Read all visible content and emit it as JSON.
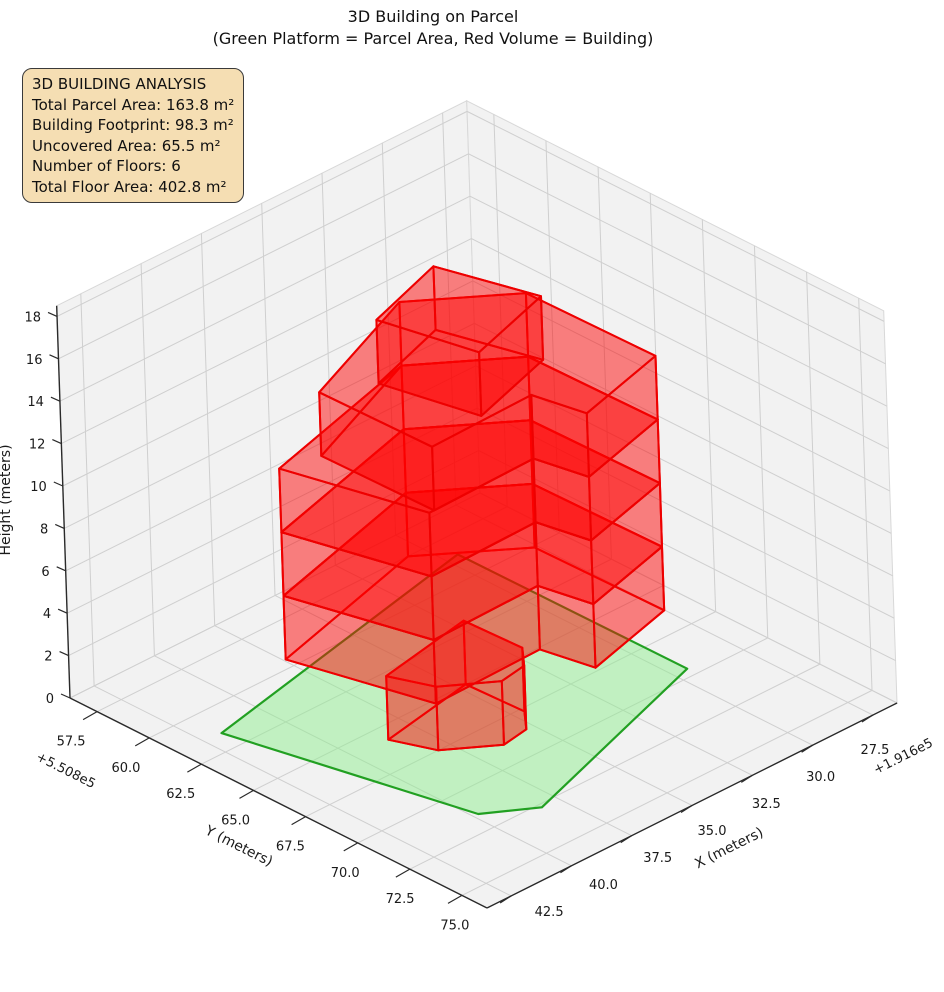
{
  "title": {
    "line1": "3D Building on Parcel",
    "line2": "(Green Platform = Parcel Area, Red Volume = Building)"
  },
  "info_box": {
    "title": "3D BUILDING ANALYSIS",
    "lines": [
      "Total Parcel Area: 163.8 m²",
      "Building Footprint: 98.3 m²",
      "Uncovered Area: 65.5 m²",
      "Number of Floors: 6",
      "Total Floor Area: 402.8 m²"
    ],
    "bg_color": "#f5deb3",
    "border_color": "#3a3a3a"
  },
  "chart_data": {
    "type": "3d-building-plot",
    "axes": {
      "x": {
        "label": "X (meters)",
        "ticks": [
          42.5,
          40.0,
          37.5,
          35.0,
          32.5,
          30.0,
          27.5
        ],
        "offset_text": "+1.916e5",
        "range": [
          26.5,
          43.5
        ]
      },
      "y": {
        "label": "Y (meters)",
        "ticks": [
          57.5,
          60.0,
          62.5,
          65.0,
          67.5,
          70.0,
          72.5,
          75.0
        ],
        "offset_text": "+5.508e5",
        "range": [
          56.2,
          76.2
        ]
      },
      "z": {
        "label": "Height (meters)",
        "ticks": [
          0,
          2,
          4,
          6,
          8,
          10,
          12,
          14,
          16,
          18
        ],
        "range": [
          0,
          18.5
        ]
      }
    },
    "colors": {
      "pane": "#f2f2f2",
      "pane_edge": "#d8d8d8",
      "grid": "#cfcfcf",
      "axis": "#2a2a2a",
      "text": "#1a1a1a",
      "parcel_fill": "rgba(144,238,144,0.5)",
      "parcel_edge": "#22a022",
      "building_fill": "rgba(255,0,0,0.28)",
      "building_edge": "#ee0000"
    },
    "parcel": {
      "name": "parcel-platform",
      "area_m2": 163.8,
      "z": 0,
      "polygon": [
        [
          41.8,
          61.5
        ],
        [
          29.5,
          58.6
        ],
        [
          29.45,
          69.55
        ],
        [
          38.2,
          72.7
        ],
        [
          39.8,
          71.5
        ]
      ]
    },
    "building": {
      "footprint_m2": 98.3,
      "uncovered_m2": 65.5,
      "num_floors": 6,
      "total_floor_area_m2": 402.8,
      "floor_height_m": 3,
      "floors": [
        {
          "name": "building-floor-1",
          "z0": 0,
          "z1": 3,
          "polygon": [
            [
              38.6,
              65.8
            ],
            [
              34.7,
              65.0
            ],
            [
              34.6,
              67.7
            ],
            [
              35.3,
              68.6
            ],
            [
              36.4,
              68.8
            ],
            [
              38.0,
              67.5
            ]
          ]
        },
        {
          "name": "building-floor-2",
          "z0": 3,
          "z1": 6,
          "polygon": [
            [
              40.0,
              62.6
            ],
            [
              33.2,
              60.6
            ],
            [
              30.2,
              63.2
            ],
            [
              30.1,
              69.3
            ],
            [
              33.9,
              70.4
            ],
            [
              34.3,
              68.2
            ],
            [
              38.7,
              68.3
            ]
          ]
        },
        {
          "name": "building-floor-3",
          "z0": 6,
          "z1": 9,
          "polygon": [
            [
              40.0,
              62.6
            ],
            [
              33.2,
              60.6
            ],
            [
              30.2,
              63.2
            ],
            [
              30.1,
              69.3
            ],
            [
              33.9,
              70.4
            ],
            [
              34.3,
              68.2
            ],
            [
              38.7,
              68.3
            ]
          ]
        },
        {
          "name": "building-floor-4",
          "z0": 9,
          "z1": 12,
          "polygon": [
            [
              40.0,
              62.6
            ],
            [
              33.2,
              60.6
            ],
            [
              30.2,
              63.2
            ],
            [
              30.1,
              69.3
            ],
            [
              33.9,
              70.4
            ],
            [
              34.3,
              68.2
            ],
            [
              38.7,
              68.3
            ]
          ]
        },
        {
          "name": "building-floor-5",
          "z0": 12,
          "z1": 15,
          "polygon": [
            [
              38.6,
              63.0
            ],
            [
              33.2,
              60.6
            ],
            [
              30.2,
              63.2
            ],
            [
              30.1,
              69.3
            ],
            [
              33.9,
              70.4
            ],
            [
              34.3,
              68.2
            ],
            [
              38.5,
              68.3
            ]
          ]
        },
        {
          "name": "building-floor-6",
          "z0": 15,
          "z1": 18,
          "polygon": [
            [
              37.0,
              64.0
            ],
            [
              33.6,
              62.8
            ],
            [
              32.6,
              66.8
            ],
            [
              36.2,
              68.0
            ]
          ]
        }
      ]
    }
  }
}
